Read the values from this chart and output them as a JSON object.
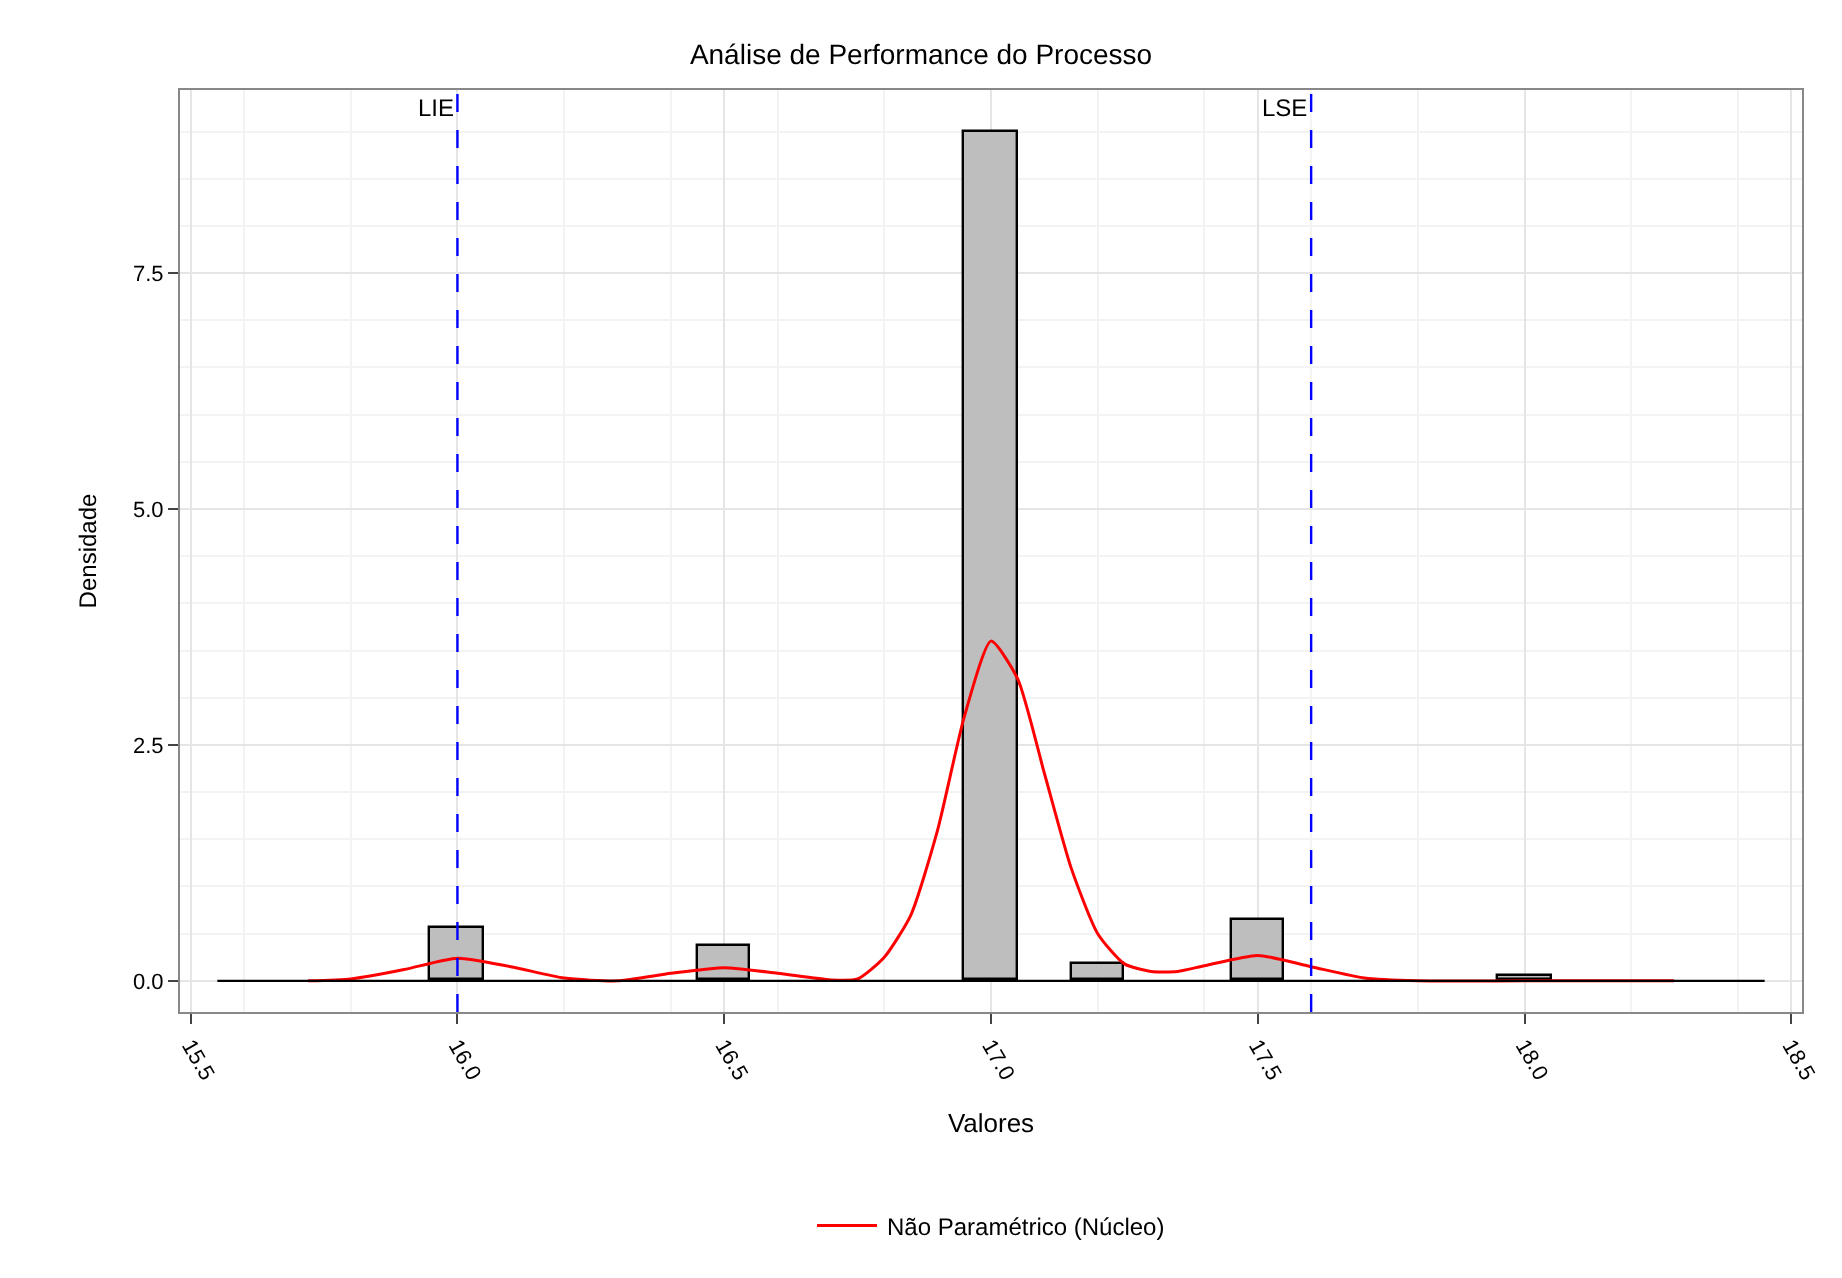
{
  "chart_data": {
    "type": "histogram",
    "title": "Análise de Performance do Processo",
    "xlabel": "Valores",
    "ylabel": "Densidade",
    "xlim": [
      15.48,
      18.52
    ],
    "xticks": [
      15.5,
      {
        "value": 16,
        "label": "16.0"
      },
      16.5,
      {
        "value": 17,
        "label": "17.0"
      },
      17.5,
      {
        "value": 18,
        "label": "18.0"
      },
      18.5
    ],
    "ylim": [
      -0.33,
      9.44
    ],
    "yticks": [
      {
        "value": 0,
        "label": "0.0"
      },
      2.5,
      {
        "value": 5,
        "label": "5.0"
      },
      7.5
    ],
    "grid": true,
    "legend": "bottom",
    "series": [
      {
        "color": "#bebebe",
        "bins": [
          15.55,
          15.65,
          15.75,
          15.85,
          15.95,
          16.05,
          16.15,
          16.25,
          16.35,
          16.45,
          16.55,
          16.65,
          16.75,
          16.85,
          16.95,
          17.05,
          17.15,
          17.25,
          17.35,
          17.45,
          17.55,
          17.65,
          17.75,
          17.85,
          17.95,
          18.05,
          18.15,
          18.25,
          18.35,
          18.45
        ],
        "values": [
          0,
          0,
          0,
          0,
          0.55,
          0,
          0,
          0,
          0,
          0.37,
          0,
          0,
          0,
          0,
          9.0,
          0,
          0.17,
          0,
          0,
          0.64,
          0,
          0,
          0,
          0,
          0.05,
          0,
          0,
          0,
          0
        ]
      },
      {
        "type": "line",
        "name": "Não Paramétrico (Núcleo)",
        "color": "#ff0000",
        "x": [
          15.72,
          15.8,
          15.9,
          16.0,
          16.1,
          16.2,
          16.3,
          16.4,
          16.5,
          16.6,
          16.7,
          16.75,
          16.8,
          16.85,
          16.9,
          16.95,
          17.0,
          17.05,
          17.1,
          17.15,
          17.2,
          17.25,
          17.3,
          17.35,
          17.4,
          17.5,
          17.6,
          17.7,
          17.8,
          18.0,
          18.28
        ],
        "values": [
          0,
          0.02,
          0.12,
          0.24,
          0.15,
          0.03,
          0.0,
          0.08,
          0.14,
          0.08,
          0.01,
          0.02,
          0.25,
          0.7,
          1.6,
          2.8,
          3.6,
          3.2,
          2.2,
          1.2,
          0.5,
          0.18,
          0.1,
          0.1,
          0.16,
          0.27,
          0.15,
          0.03,
          0.0,
          0.0,
          0.0
        ]
      }
    ],
    "ref_lines": [
      {
        "axis": "x",
        "value": 16.0,
        "label": "LIE",
        "color": "#0000ff",
        "line_style": "dashed"
      },
      {
        "axis": "x",
        "value": 17.6,
        "label": "LSE",
        "color": "#0000ff",
        "line_style": "dashed"
      }
    ]
  }
}
